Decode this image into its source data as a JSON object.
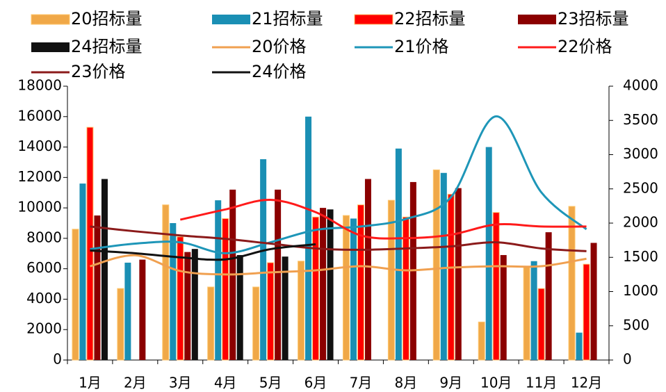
{
  "chart_data": {
    "type": "bar",
    "categories": [
      "1月",
      "2月",
      "3月",
      "4月",
      "5月",
      "6月",
      "7月",
      "8月",
      "9月",
      "10月",
      "11月",
      "12月"
    ],
    "ylim": [
      0,
      18000
    ],
    "yticks": [
      0,
      2000,
      4000,
      6000,
      8000,
      10000,
      12000,
      14000,
      16000,
      18000
    ],
    "y2lim": [
      0,
      4000
    ],
    "y2ticks": [
      0,
      500,
      1000,
      1500,
      2000,
      2500,
      3000,
      3500,
      4000
    ],
    "series": [
      {
        "name": "20招标量",
        "type": "bar",
        "color": "#f0a848",
        "values": [
          8600,
          4700,
          10200,
          4800,
          4800,
          6500,
          9500,
          10500,
          12500,
          2500,
          6100,
          10100
        ]
      },
      {
        "name": "21招标量",
        "type": "bar",
        "color": "#1a8fb4",
        "values": [
          11600,
          6400,
          9000,
          10500,
          13200,
          16000,
          9300,
          13900,
          12300,
          14000,
          6500,
          1800
        ]
      },
      {
        "name": "22招标量",
        "type": "bar",
        "color": "#ff0000",
        "values": [
          15300,
          null,
          8100,
          9300,
          6400,
          9400,
          10200,
          9400,
          10900,
          9700,
          4700,
          6300
        ]
      },
      {
        "name": "23招标量",
        "type": "bar",
        "color": "#8b0000",
        "values": [
          9500,
          6600,
          7100,
          11200,
          11200,
          10000,
          11900,
          11700,
          11300,
          6900,
          8400,
          7700
        ]
      },
      {
        "name": "24招标量",
        "type": "bar",
        "color": "#111111",
        "values": [
          11900,
          null,
          7300,
          6900,
          6800,
          9900,
          null,
          null,
          null,
          null,
          null,
          null
        ]
      },
      {
        "name": "20价格",
        "type": "line",
        "axis": "y2",
        "color": "#f0a050",
        "values": [
          1370,
          1530,
          1300,
          1250,
          1280,
          1310,
          1370,
          1310,
          1350,
          1370,
          1370,
          1480
        ]
      },
      {
        "name": "21价格",
        "type": "line",
        "axis": "y2",
        "color": "#1e96b8",
        "values": [
          1620,
          1700,
          1720,
          1560,
          1720,
          1900,
          1950,
          2060,
          2380,
          3560,
          2450,
          1910
        ]
      },
      {
        "name": "22价格",
        "type": "line",
        "axis": "y2",
        "color": "#ff1a1a",
        "values": [
          null,
          null,
          2050,
          2200,
          2340,
          2160,
          1820,
          1780,
          1830,
          1980,
          1950,
          1950
        ]
      },
      {
        "name": "23价格",
        "type": "line",
        "axis": "y2",
        "color": "#8b1a1a",
        "values": [
          1950,
          1880,
          1820,
          1770,
          1700,
          1630,
          1610,
          1630,
          1660,
          1720,
          1630,
          1590
        ]
      },
      {
        "name": "24价格",
        "type": "line",
        "axis": "y2",
        "color": "#111111",
        "values": [
          1600,
          1560,
          1500,
          1470,
          1620,
          1690,
          null,
          null,
          null,
          null,
          null,
          null
        ]
      }
    ]
  }
}
